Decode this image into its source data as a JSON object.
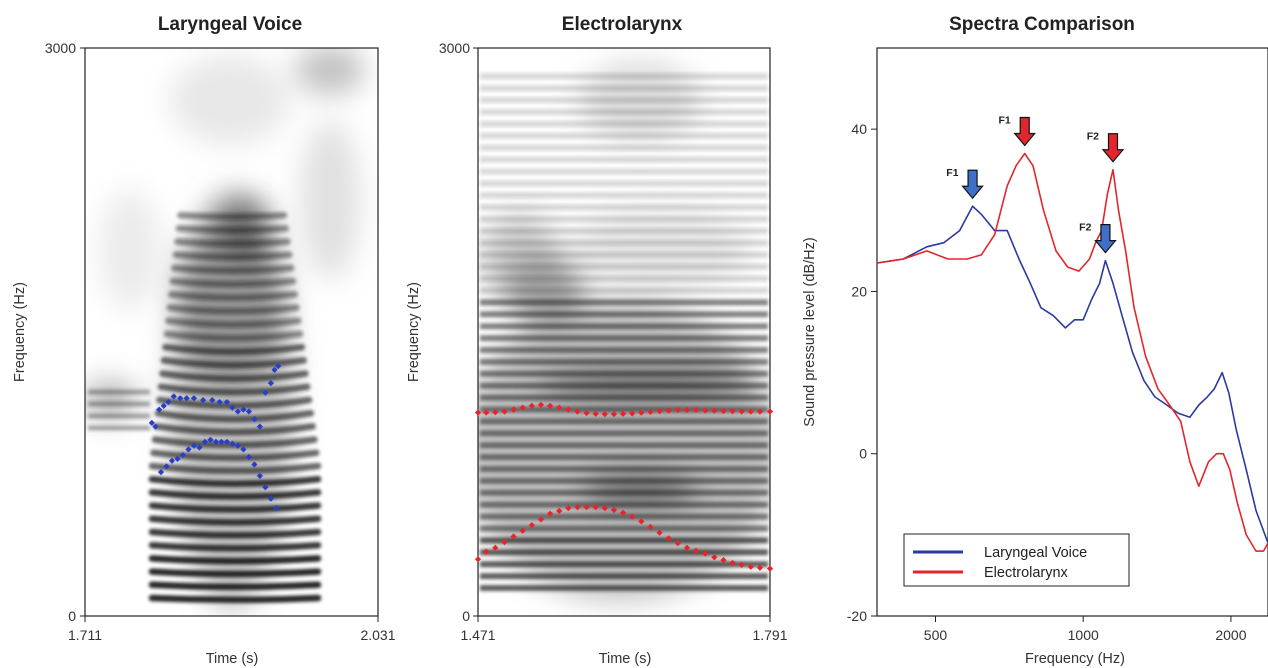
{
  "chart_data": [
    {
      "type": "heatmap",
      "title": "Laryngeal Voice",
      "xlabel": "Time (s)",
      "ylabel": "Frequency (Hz)",
      "xlim": [
        1.711,
        2.031
      ],
      "ylim": [
        0,
        3000
      ],
      "x_tick_labels": [
        "1.711",
        "2.031"
      ],
      "y_tick_labels": [
        "0",
        "3000"
      ],
      "overlay_color": "#2a3fc4",
      "formant_tracks": [
        {
          "name": "F1",
          "points": [
            [
              1.794,
              760
            ],
            [
              1.8,
              790
            ],
            [
              1.806,
              820
            ],
            [
              1.812,
              830
            ],
            [
              1.818,
              850
            ],
            [
              1.824,
              880
            ],
            [
              1.83,
              900
            ],
            [
              1.836,
              890
            ],
            [
              1.842,
              920
            ],
            [
              1.848,
              930
            ],
            [
              1.854,
              920
            ],
            [
              1.86,
              920
            ],
            [
              1.866,
              920
            ],
            [
              1.872,
              910
            ],
            [
              1.878,
              900
            ],
            [
              1.884,
              880
            ],
            [
              1.89,
              840
            ],
            [
              1.896,
              800
            ],
            [
              1.902,
              740
            ],
            [
              1.908,
              680
            ],
            [
              1.914,
              620
            ],
            [
              1.92,
              570
            ]
          ]
        },
        {
          "name": "F2",
          "points": [
            [
              1.784,
              1020
            ],
            [
              1.788,
              1000
            ],
            [
              1.792,
              1090
            ],
            [
              1.797,
              1110
            ],
            [
              1.802,
              1130
            ],
            [
              1.808,
              1160
            ],
            [
              1.815,
              1150
            ],
            [
              1.822,
              1150
            ],
            [
              1.83,
              1150
            ],
            [
              1.84,
              1140
            ],
            [
              1.85,
              1140
            ],
            [
              1.858,
              1130
            ],
            [
              1.866,
              1130
            ],
            [
              1.872,
              1100
            ],
            [
              1.878,
              1080
            ],
            [
              1.884,
              1090
            ],
            [
              1.89,
              1080
            ],
            [
              1.896,
              1040
            ],
            [
              1.902,
              1000
            ],
            [
              1.908,
              1180
            ],
            [
              1.914,
              1230
            ],
            [
              1.918,
              1300
            ],
            [
              1.922,
              1320
            ]
          ]
        }
      ]
    },
    {
      "type": "heatmap",
      "title": "Electrolarynx",
      "xlabel": "Time (s)",
      "ylabel": "Frequency (Hz)",
      "xlim": [
        1.471,
        1.791
      ],
      "ylim": [
        0,
        3000
      ],
      "x_tick_labels": [
        "1.471",
        "1.791"
      ],
      "y_tick_labels": [
        "0",
        "3000"
      ],
      "overlay_color": "#e8242b",
      "formant_tracks": [
        {
          "name": "F1",
          "points": [
            [
              1.471,
              300
            ],
            [
              1.48,
              340
            ],
            [
              1.49,
              360
            ],
            [
              1.5,
              390
            ],
            [
              1.51,
              420
            ],
            [
              1.52,
              450
            ],
            [
              1.53,
              480
            ],
            [
              1.54,
              510
            ],
            [
              1.55,
              540
            ],
            [
              1.56,
              555
            ],
            [
              1.57,
              570
            ],
            [
              1.58,
              575
            ],
            [
              1.59,
              575
            ],
            [
              1.6,
              575
            ],
            [
              1.61,
              570
            ],
            [
              1.62,
              560
            ],
            [
              1.63,
              545
            ],
            [
              1.64,
              525
            ],
            [
              1.65,
              500
            ],
            [
              1.66,
              470
            ],
            [
              1.67,
              440
            ],
            [
              1.68,
              410
            ],
            [
              1.69,
              385
            ],
            [
              1.7,
              360
            ],
            [
              1.71,
              345
            ],
            [
              1.72,
              330
            ],
            [
              1.73,
              310
            ],
            [
              1.74,
              295
            ],
            [
              1.75,
              280
            ],
            [
              1.76,
              270
            ],
            [
              1.77,
              260
            ],
            [
              1.78,
              255
            ],
            [
              1.791,
              250
            ]
          ]
        },
        {
          "name": "F2",
          "points": [
            [
              1.471,
              1075
            ],
            [
              1.48,
              1075
            ],
            [
              1.49,
              1076
            ],
            [
              1.5,
              1080
            ],
            [
              1.51,
              1090
            ],
            [
              1.52,
              1100
            ],
            [
              1.53,
              1110
            ],
            [
              1.54,
              1115
            ],
            [
              1.55,
              1110
            ],
            [
              1.56,
              1100
            ],
            [
              1.57,
              1090
            ],
            [
              1.58,
              1080
            ],
            [
              1.59,
              1072
            ],
            [
              1.6,
              1068
            ],
            [
              1.61,
              1066
            ],
            [
              1.62,
              1066
            ],
            [
              1.63,
              1068
            ],
            [
              1.64,
              1070
            ],
            [
              1.65,
              1074
            ],
            [
              1.66,
              1078
            ],
            [
              1.67,
              1082
            ],
            [
              1.68,
              1085
            ],
            [
              1.69,
              1088
            ],
            [
              1.7,
              1088
            ],
            [
              1.71,
              1088
            ],
            [
              1.72,
              1086
            ],
            [
              1.73,
              1085
            ],
            [
              1.74,
              1083
            ],
            [
              1.75,
              1082
            ],
            [
              1.76,
              1080
            ],
            [
              1.77,
              1080
            ],
            [
              1.78,
              1080
            ],
            [
              1.791,
              1080
            ]
          ]
        }
      ]
    },
    {
      "type": "line",
      "title": "Spectra Comparison",
      "xlabel": "Frequency (Hz)",
      "ylabel": "Sound pressure level (dB/Hz)",
      "x_scale": "log",
      "xlim": [
        380,
        2380
      ],
      "ylim": [
        -20,
        50
      ],
      "x_ticks": [
        500,
        1000,
        2000
      ],
      "y_ticks": [
        -20,
        0,
        20,
        40
      ],
      "legend_position": "lower-left",
      "series": [
        {
          "name": "Laryngeal Voice",
          "color": "#2b3a9c",
          "x": [
            380,
            430,
            480,
            520,
            560,
            595,
            620,
            660,
            700,
            740,
            780,
            820,
            870,
            920,
            960,
            1000,
            1040,
            1080,
            1110,
            1150,
            1200,
            1260,
            1330,
            1400,
            1480,
            1560,
            1650,
            1720,
            1790,
            1850,
            1920,
            1980,
            2050,
            2150,
            2250,
            2380
          ],
          "y": [
            23.5,
            24,
            25.5,
            26,
            27.5,
            30.5,
            29.5,
            27.5,
            27.5,
            24,
            21,
            18,
            17,
            15.5,
            16.5,
            16.5,
            19,
            21,
            23.8,
            21,
            17,
            12.5,
            9,
            7,
            6,
            5,
            4.5,
            6,
            7,
            8,
            10,
            7.5,
            3,
            -2,
            -7,
            -11
          ]
        },
        {
          "name": "Electrolarynx",
          "color": "#e3262d",
          "x": [
            380,
            430,
            480,
            530,
            580,
            620,
            660,
            700,
            730,
            760,
            790,
            830,
            880,
            930,
            980,
            1030,
            1060,
            1090,
            1120,
            1150,
            1180,
            1220,
            1270,
            1340,
            1420,
            1500,
            1580,
            1650,
            1720,
            1800,
            1870,
            1930,
            1990,
            2060,
            2150,
            2250,
            2330,
            2380
          ],
          "y": [
            23.5,
            24,
            25,
            24,
            24,
            24.5,
            27,
            33,
            35.5,
            37,
            35.5,
            30,
            25,
            23,
            22.5,
            24,
            26,
            27.5,
            32,
            35,
            30,
            25,
            18,
            12,
            8,
            6,
            4,
            -1,
            -4,
            -1,
            0,
            0,
            -2,
            -6,
            -10,
            -12,
            -12,
            -11
          ]
        }
      ],
      "annotations": [
        {
          "label": "F1",
          "series": "Laryngeal Voice",
          "x": 595,
          "y": 30.5
        },
        {
          "label": "F2",
          "series": "Laryngeal Voice",
          "x": 1110,
          "y": 23.8
        },
        {
          "label": "F1",
          "series": "Electrolarynx",
          "x": 760,
          "y": 37
        },
        {
          "label": "F2",
          "series": "Electrolarynx",
          "x": 1150,
          "y": 35
        }
      ]
    }
  ]
}
